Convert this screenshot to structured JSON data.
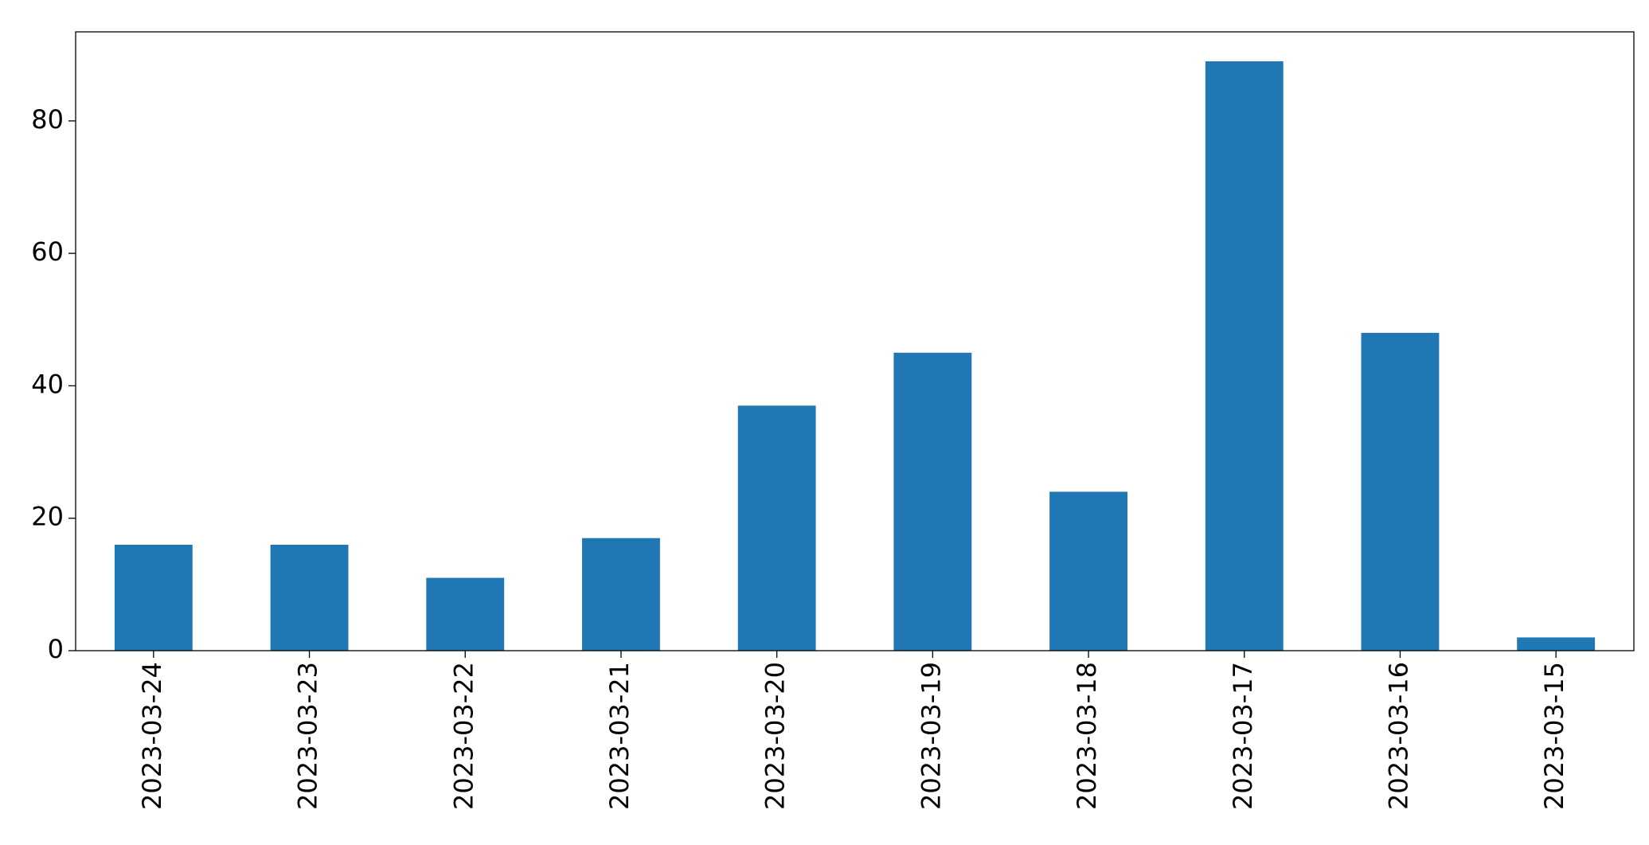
{
  "chart_data": {
    "type": "bar",
    "categories": [
      "2023-03-24",
      "2023-03-23",
      "2023-03-22",
      "2023-03-21",
      "2023-03-20",
      "2023-03-19",
      "2023-03-18",
      "2023-03-17",
      "2023-03-16",
      "2023-03-15"
    ],
    "values": [
      16,
      16,
      11,
      17,
      37,
      45,
      24,
      89,
      48,
      2
    ],
    "color": "#1f77b4",
    "ylim": [
      0,
      93.45
    ],
    "yticks": [
      0,
      20,
      40,
      60,
      80
    ],
    "grid": false
  }
}
